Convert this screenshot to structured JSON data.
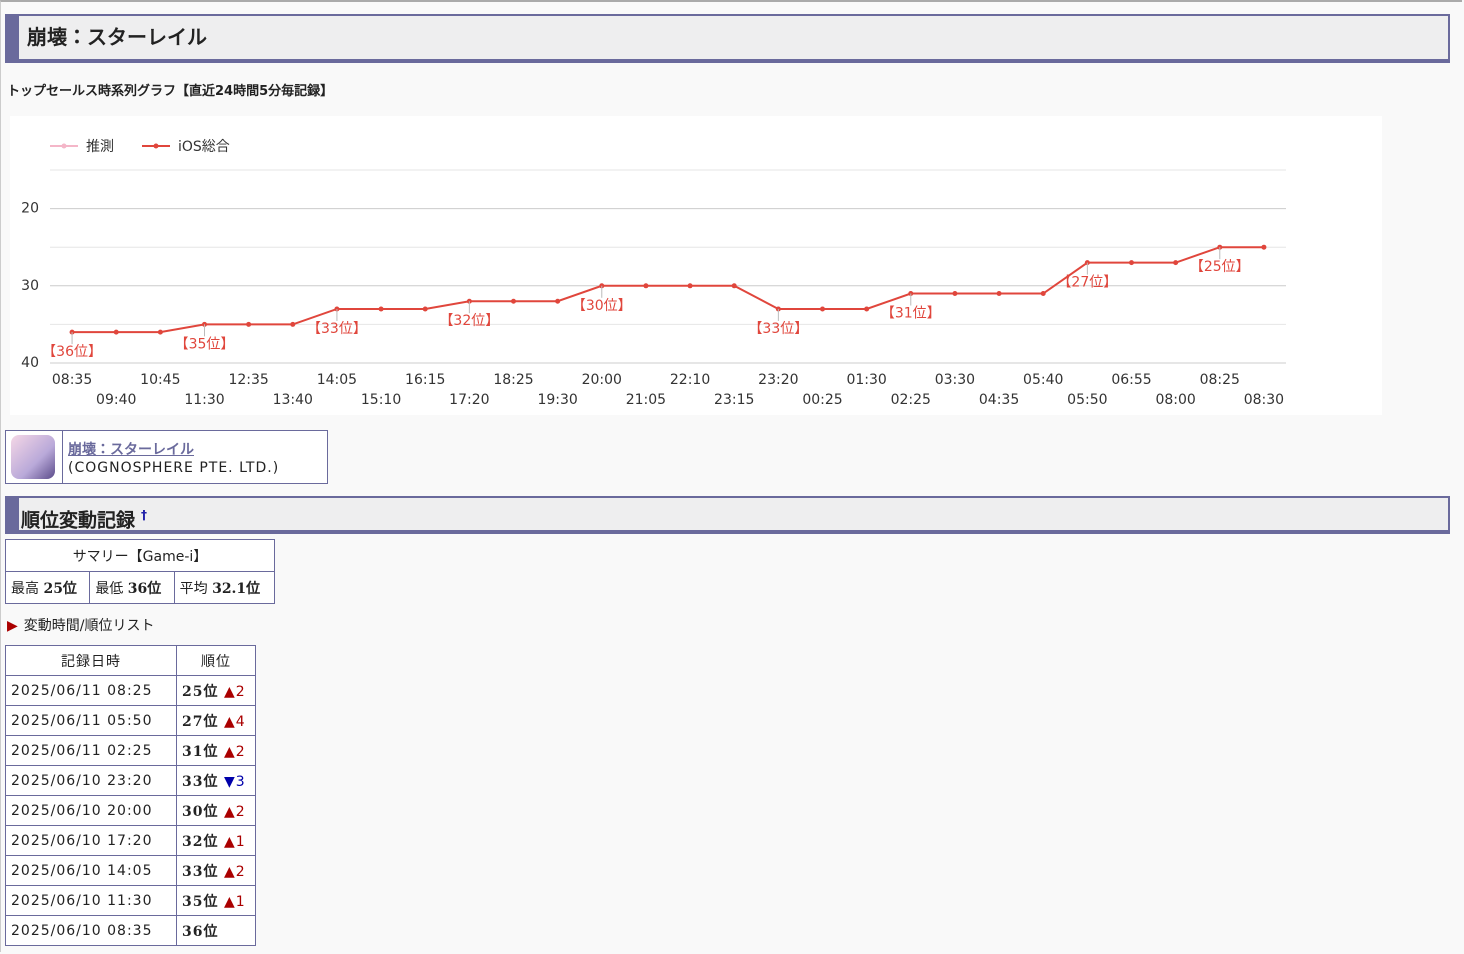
{
  "header": {
    "title": "崩壊：スターレイル"
  },
  "graph_title": "トップセールス時系列グラフ【直近24時間5分毎記録】",
  "chart_data": {
    "type": "line",
    "categories": [
      "08:35",
      "09:40",
      "10:45",
      "11:30",
      "12:35",
      "13:40",
      "14:05",
      "15:10",
      "16:15",
      "17:20",
      "18:25",
      "19:30",
      "20:00",
      "21:05",
      "22:10",
      "23:15",
      "23:20",
      "00:25",
      "01:30",
      "02:25",
      "03:30",
      "04:35",
      "05:40",
      "05:50",
      "06:55",
      "08:00",
      "08:25",
      "08:30"
    ],
    "series": [
      {
        "name": "推測",
        "color": "#f4b6c8",
        "values": [
          null,
          null,
          null,
          null,
          null,
          null,
          null,
          null,
          null,
          null,
          null,
          null,
          null,
          null,
          null,
          null,
          null,
          null,
          null,
          null,
          null,
          null,
          null,
          null,
          null,
          null,
          null,
          null
        ]
      },
      {
        "name": "iOS総合",
        "color": "#e0463c",
        "values": [
          36,
          36,
          36,
          35,
          35,
          35,
          33,
          33,
          33,
          32,
          32,
          32,
          30,
          30,
          30,
          30,
          33,
          33,
          33,
          31,
          31,
          31,
          31,
          27,
          27,
          27,
          25,
          25
        ],
        "value_labels": [
          "【36位】",
          null,
          null,
          "【35位】",
          null,
          null,
          "【33位】",
          null,
          null,
          "【32位】",
          null,
          null,
          "【30位】",
          null,
          null,
          null,
          "【33位】",
          null,
          null,
          "【31位】",
          null,
          null,
          null,
          "【27位】",
          null,
          null,
          "【25位】",
          null
        ]
      }
    ],
    "ylim": [
      40,
      15
    ],
    "yticks": [
      20,
      30,
      40
    ],
    "minor_grid": [
      15,
      25,
      35
    ],
    "grid": true,
    "legend": "top-left"
  },
  "app": {
    "name": "崩壊：スターレイル",
    "publisher": "(COGNOSPHERE PTE. LTD.)"
  },
  "section": {
    "title": "順位変動記録",
    "mark": "†"
  },
  "summary": {
    "title": "サマリー【Game-i】",
    "cells": [
      {
        "label": "最高",
        "value": "25位"
      },
      {
        "label": "最低",
        "value": "36位"
      },
      {
        "label": "平均",
        "value": "32.1位"
      }
    ]
  },
  "list_toggle": "変動時間/順位リスト",
  "table": {
    "headers": [
      "記録日時",
      "順位"
    ],
    "rows": [
      [
        "2025/06/11 08:25",
        "25位",
        "▲2"
      ],
      [
        "2025/06/11 05:50",
        "27位",
        "▲4"
      ],
      [
        "2025/06/11 02:25",
        "31位",
        "▲2"
      ],
      [
        "2025/06/10 23:20",
        "33位",
        "▼3"
      ],
      [
        "2025/06/10 20:00",
        "30位",
        "▲2"
      ],
      [
        "2025/06/10 17:20",
        "32位",
        "▲1"
      ],
      [
        "2025/06/10 14:05",
        "33位",
        "▲2"
      ],
      [
        "2025/06/10 11:30",
        "35位",
        "▲1"
      ],
      [
        "2025/06/10 08:35",
        "36位",
        null
      ]
    ]
  }
}
